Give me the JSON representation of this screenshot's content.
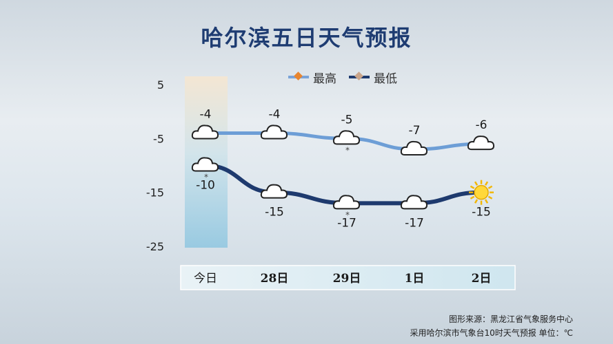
{
  "title": "哈尔滨五日天气预报",
  "legend": {
    "high_label": "最高",
    "low_label": "最低"
  },
  "footer": {
    "source": "图形来源：黑龙江省气象服务中心",
    "note": "采用哈尔滨市气象台10时天气预报 单位：℃"
  },
  "colors": {
    "title": "#1e3c72",
    "high_line": "#7aa3d8",
    "low_line": "#1e3a6e",
    "today_panel": "#a8d4e6"
  },
  "chart_data": {
    "type": "line",
    "categories": [
      "今日",
      "28日",
      "29日",
      "1日",
      "2日"
    ],
    "ylim": [
      -25,
      5
    ],
    "yticks": [
      5,
      -5,
      -15,
      -25
    ],
    "highlight_category": "今日",
    "series": [
      {
        "name": "最高",
        "values": [
          -4,
          -4,
          -5,
          -7,
          -6
        ],
        "icons": [
          "cloud-icon",
          "cloud-icon",
          "cloud-snow-icon",
          "cloud-icon",
          "cloud-icon"
        ]
      },
      {
        "name": "最低",
        "values": [
          -10,
          -15,
          -17,
          -17,
          -15
        ],
        "icons": [
          "cloud-snow-icon",
          "cloud-icon",
          "cloud-snow-icon",
          "cloud-icon",
          "sun-icon"
        ]
      }
    ]
  }
}
